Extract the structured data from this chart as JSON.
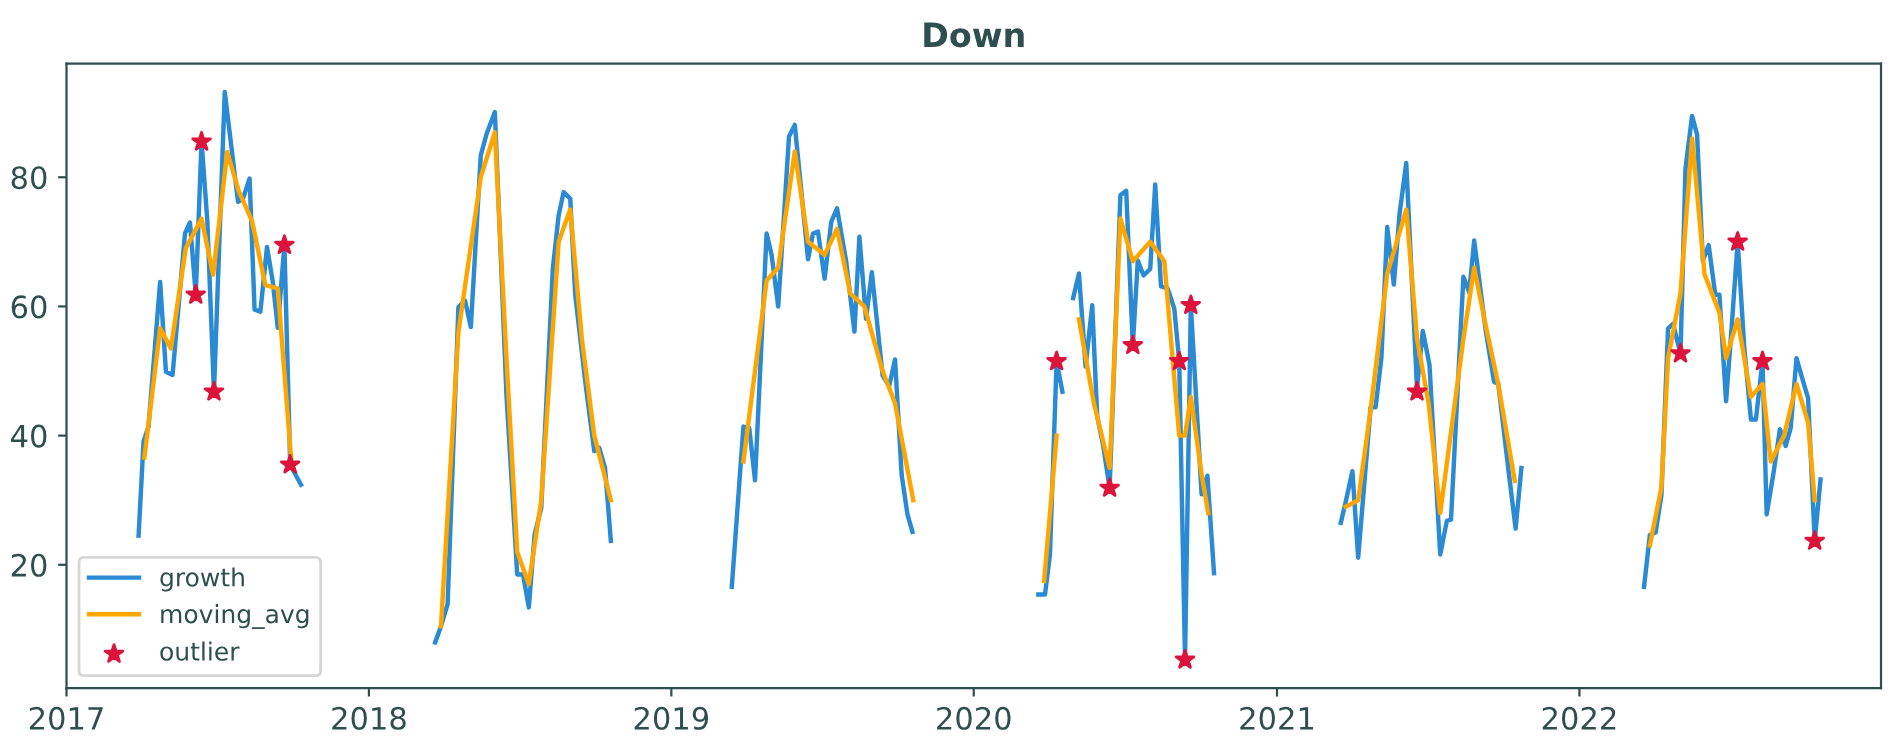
{
  "chart_data": {
    "type": "line",
    "title": "Down",
    "xlim": [
      "2017-01-01",
      "2022-12-31"
    ],
    "ylim": [
      0.9,
      97.6
    ],
    "xticks": [
      {
        "value": "2017-01-01",
        "label": "2017"
      },
      {
        "value": "2018-01-01",
        "label": "2018"
      },
      {
        "value": "2019-01-01",
        "label": "2019"
      },
      {
        "value": "2020-01-01",
        "label": "2020"
      },
      {
        "value": "2021-01-01",
        "label": "2021"
      },
      {
        "value": "2022-01-01",
        "label": "2022"
      }
    ],
    "yticks": [
      20,
      40,
      60,
      80
    ],
    "grid": false,
    "legend": "bottom left",
    "series": [
      {
        "name": "growth",
        "color": "#2a8bd4",
        "marker": "none",
        "x": [
          "2017-03-29",
          "2017-04-04",
          "2017-04-10",
          "2017-04-24",
          "2017-05-01",
          "2017-05-09",
          "2017-05-24",
          "2017-05-30",
          "2017-06-06",
          "2017-06-13",
          "2017-06-20",
          "2017-06-28",
          "2017-07-11",
          "2017-07-27",
          "2017-08-02",
          "2017-08-10",
          "2017-08-16",
          "2017-08-23",
          "2017-08-31",
          "2017-09-07",
          "2017-09-13",
          "2017-09-21",
          "2017-09-28",
          "2017-10-11",
          "2017-12-31",
          "2018-03-22",
          "2018-03-29",
          "2018-04-06",
          "2018-04-19",
          "2018-04-27",
          "2018-05-04",
          "2018-05-16",
          "2018-05-23",
          "2018-06-02",
          "2018-06-16",
          "2018-06-29",
          "2018-07-06",
          "2018-07-13",
          "2018-07-20",
          "2018-07-28",
          "2018-08-11",
          "2018-08-18",
          "2018-08-24",
          "2018-09-01",
          "2018-09-07",
          "2018-09-20",
          "2018-09-30",
          "2018-10-06",
          "2018-10-13",
          "2018-10-20",
          "2018-12-31",
          "2019-03-15",
          "2019-03-29",
          "2019-04-05",
          "2019-04-12",
          "2019-04-26",
          "2019-05-02",
          "2019-05-10",
          "2019-05-23",
          "2019-05-30",
          "2019-06-15",
          "2019-06-21",
          "2019-06-27",
          "2019-07-05",
          "2019-07-13",
          "2019-07-20",
          "2019-07-31",
          "2019-08-10",
          "2019-08-16",
          "2019-08-24",
          "2019-08-31",
          "2019-09-13",
          "2019-09-21",
          "2019-09-28",
          "2019-10-06",
          "2019-10-13",
          "2019-10-19",
          "2019-12-31",
          "2020-03-19",
          "2020-03-27",
          "2020-04-02",
          "2020-04-10",
          "2020-04-17",
          "2020-04-24",
          "2020-04-30",
          "2020-05-07",
          "2020-05-15",
          "2020-05-23",
          "2020-05-29",
          "2020-06-05",
          "2020-06-13",
          "2020-06-26",
          "2020-07-03",
          "2020-07-11",
          "2020-07-17",
          "2020-07-24",
          "2020-08-01",
          "2020-08-07",
          "2020-08-14",
          "2020-08-22",
          "2020-08-30",
          "2020-09-05",
          "2020-09-12",
          "2020-09-19",
          "2020-10-02",
          "2020-10-09",
          "2020-10-17",
          "2020-12-31",
          "2021-03-19",
          "2021-03-25",
          "2021-04-02",
          "2021-04-09",
          "2021-04-24",
          "2021-04-30",
          "2021-05-07",
          "2021-05-14",
          "2021-05-22",
          "2021-05-29",
          "2021-06-06",
          "2021-06-19",
          "2021-06-26",
          "2021-07-04",
          "2021-07-17",
          "2021-07-25",
          "2021-07-30",
          "2021-08-14",
          "2021-08-21",
          "2021-08-27",
          "2021-09-10",
          "2021-09-20",
          "2021-09-25",
          "2021-10-08",
          "2021-10-16",
          "2021-10-23",
          "2021-12-31",
          "2022-03-20",
          "2022-03-27",
          "2022-04-03",
          "2022-04-10",
          "2022-04-18",
          "2022-04-24",
          "2022-05-03",
          "2022-05-09",
          "2022-05-17",
          "2022-05-23",
          "2022-05-30",
          "2022-06-06",
          "2022-06-14",
          "2022-06-19",
          "2022-06-27",
          "2022-07-04",
          "2022-07-11",
          "2022-07-19",
          "2022-07-27",
          "2022-08-02",
          "2022-08-10",
          "2022-08-15",
          "2022-08-23",
          "2022-08-31",
          "2022-09-07",
          "2022-09-13",
          "2022-09-20",
          "2022-09-28",
          "2022-10-04",
          "2022-10-12",
          "2022-10-19"
        ],
        "values": [
          24.5,
          39.1,
          41.4,
          63.8,
          49.9,
          49.4,
          71.3,
          73,
          61.8,
          85.5,
          73.2,
          46.8,
          93.2,
          76.2,
          76.7,
          79.8,
          59.5,
          59.2,
          69.2,
          63.8,
          56.7,
          69.5,
          35.5,
          32.4,
          null,
          8.0,
          10.5,
          13.9,
          59.9,
          60.9,
          56.8,
          83.4,
          86.7,
          90.1,
          46.3,
          18.5,
          18.5,
          13.4,
          24.7,
          28.8,
          65.9,
          74.1,
          77.7,
          76.7,
          61.8,
          47.4,
          37.6,
          38.1,
          35.0,
          23.7,
          null,
          16.6,
          41.4,
          41.2,
          33.1,
          71.3,
          68.0,
          60.0,
          86.3,
          88.1,
          67.3,
          71.3,
          71.6,
          64.3,
          73.1,
          75.2,
          67.0,
          56.1,
          70.8,
          58.1,
          65.3,
          49.3,
          47.7,
          51.8,
          33.9,
          27.8,
          25.1,
          null,
          15.4,
          15.4,
          21.6,
          51.5,
          46.8,
          null,
          61.3,
          65.1,
          50.7,
          60.2,
          43.0,
          38.6,
          31.9,
          77.2,
          77.9,
          54.0,
          67.1,
          64.8,
          65.8,
          78.9,
          63.1,
          62.8,
          59.7,
          51.5,
          5.3,
          60.2,
          30.9,
          33.8,
          18.7,
          null,
          26.5,
          29.8,
          34.5,
          21.1,
          44.4,
          44.4,
          52.0,
          72.3,
          63.4,
          74.4,
          82.2,
          47.4,
          56.2,
          51.0,
          21.6,
          26.8,
          27.0,
          64.6,
          62.2,
          70.2,
          56.2,
          48.3,
          48.1,
          34.0,
          25.6,
          35.0,
          null,
          16.6,
          24.6,
          25.0,
          30.8,
          56.6,
          57.3,
          52.7,
          81.3,
          89.5,
          86.6,
          67.1,
          69.5,
          61.8,
          61.8,
          45.3,
          57.2,
          70.0,
          53.6,
          42.5,
          42.5,
          51.5,
          27.8,
          34.0,
          41.0,
          38.4,
          41.2,
          52.0,
          48.4,
          45.8,
          23.7,
          33.2
        ]
      },
      {
        "name": "moving_avg",
        "color": "#ffa500",
        "marker": "none",
        "x": [
          "2017-04-05",
          "2017-04-24",
          "2017-05-07",
          "2017-05-25",
          "2017-06-13",
          "2017-06-27",
          "2017-07-14",
          "2017-07-28",
          "2017-08-13",
          "2017-08-29",
          "2017-09-13",
          "2017-09-30",
          "2017-12-31",
          "2018-03-29",
          "2018-04-19",
          "2018-05-16",
          "2018-06-02",
          "2018-06-16",
          "2018-06-29",
          "2018-07-13",
          "2018-07-28",
          "2018-08-18",
          "2018-09-01",
          "2018-09-15",
          "2018-09-30",
          "2018-10-20",
          "2018-12-31",
          "2019-03-29",
          "2019-04-26",
          "2019-05-10",
          "2019-05-30",
          "2019-06-15",
          "2019-07-05",
          "2019-07-20",
          "2019-08-05",
          "2019-08-22",
          "2019-09-13",
          "2019-09-28",
          "2019-10-20",
          "2019-12-31",
          "2020-03-26",
          "2020-04-10",
          "2020-04-20",
          "2020-05-07",
          "2020-05-25",
          "2020-06-13",
          "2020-06-26",
          "2020-07-11",
          "2020-08-01",
          "2020-08-18",
          "2020-09-05",
          "2020-09-12",
          "2020-09-19",
          "2020-10-02",
          "2020-10-10",
          "2020-12-31",
          "2021-03-25",
          "2021-04-09",
          "2021-04-24",
          "2021-05-14",
          "2021-06-06",
          "2021-06-19",
          "2021-07-03",
          "2021-07-17",
          "2021-08-14",
          "2021-08-27",
          "2021-09-10",
          "2021-09-25",
          "2021-10-15",
          "2021-12-31",
          "2022-03-27",
          "2022-04-10",
          "2022-04-18",
          "2022-05-03",
          "2022-05-17",
          "2022-06-01",
          "2022-06-19",
          "2022-06-27",
          "2022-07-11",
          "2022-07-27",
          "2022-08-10",
          "2022-08-20",
          "2022-09-05",
          "2022-09-20",
          "2022-10-04",
          "2022-10-12"
        ],
        "values": [
          36.6,
          56.6,
          53.5,
          69,
          73.6,
          64.9,
          83.9,
          77.8,
          73.2,
          63.3,
          62.8,
          35,
          null,
          10.5,
          56,
          80,
          87,
          52,
          22,
          17,
          30,
          70,
          75,
          55,
          40,
          30,
          null,
          36,
          64,
          66,
          84,
          70,
          68,
          72,
          62,
          60,
          50,
          45,
          30,
          null,
          17.5,
          40,
          null,
          58,
          45,
          35,
          73.6,
          67,
          70,
          67,
          40,
          40,
          46,
          34,
          28,
          null,
          29,
          30,
          44,
          65,
          75,
          55,
          45,
          28,
          55,
          66,
          57,
          48,
          33,
          null,
          23,
          32,
          52,
          62,
          86,
          65,
          59,
          52,
          58,
          46,
          48,
          36,
          40,
          48,
          42,
          30
        ]
      },
      {
        "name": "outlier",
        "type": "scatter",
        "color": "#dc143c",
        "marker": "star",
        "x": [
          "2017-06-06",
          "2017-06-13",
          "2017-06-28",
          "2017-09-21",
          "2017-09-28",
          "2020-04-10",
          "2020-06-13",
          "2020-07-11",
          "2020-09-05",
          "2020-09-12",
          "2020-09-19",
          "2021-06-19",
          "2022-05-03",
          "2022-07-11",
          "2022-08-10",
          "2022-10-12"
        ],
        "values": [
          61.8,
          85.5,
          46.8,
          69.5,
          35.5,
          51.5,
          31.9,
          54.0,
          51.5,
          5.3,
          60.2,
          46.8,
          52.7,
          70.0,
          51.5,
          23.7
        ]
      }
    ]
  }
}
